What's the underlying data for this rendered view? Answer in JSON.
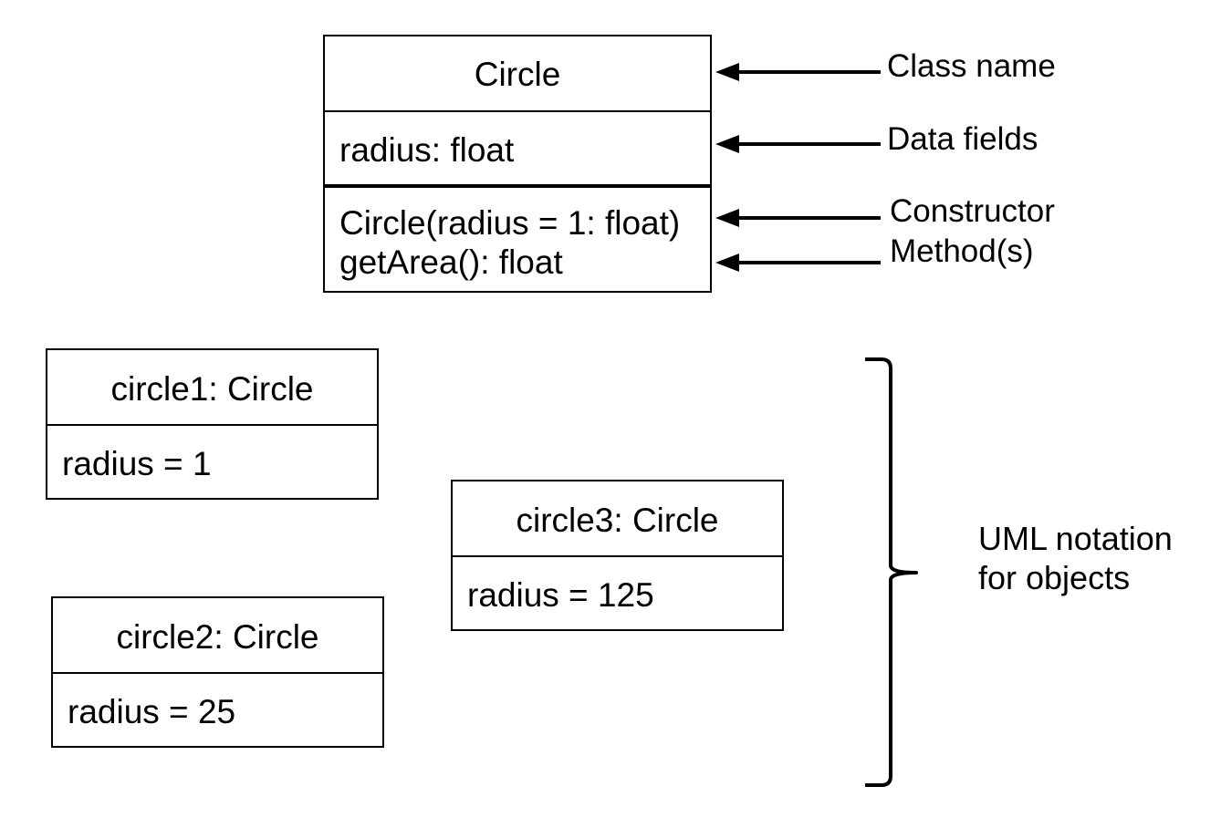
{
  "class_box": {
    "name": "Circle",
    "field": "radius: float",
    "constructor": "Circle(radius = 1: float)",
    "method": "getArea(): float"
  },
  "annotations": {
    "class_name": "Class name",
    "data_fields": "Data fields",
    "constructor": "Constructor",
    "methods": "Method(s)"
  },
  "objects": [
    {
      "title": "circle1: Circle",
      "field": "radius = 1"
    },
    {
      "title": "circle2: Circle",
      "field": "radius = 25"
    },
    {
      "title": "circle3: Circle",
      "field": "radius = 125"
    }
  ],
  "uml_note": {
    "line1": "UML notation",
    "line2": "for objects"
  },
  "colors": {
    "stroke": "#000000",
    "background": "#ffffff"
  }
}
